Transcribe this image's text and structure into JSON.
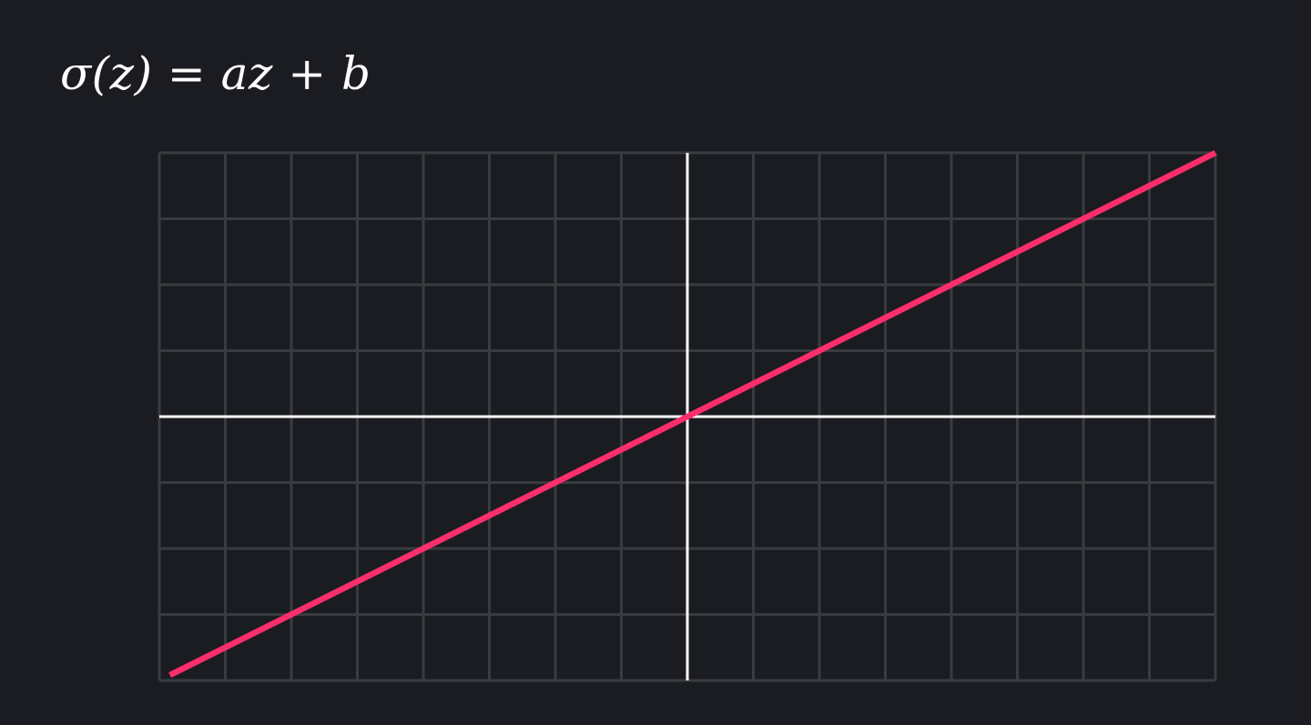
{
  "formula": {
    "text": "σ(z) = az + b"
  },
  "chart_data": {
    "type": "line",
    "x_range": [
      -8,
      8
    ],
    "y_range": [
      -4,
      4
    ],
    "grid": true,
    "grid_step": 1,
    "series": [
      {
        "x": [
          -7.84,
          8
        ],
        "y": [
          -3.92,
          4
        ],
        "color": "#ff2e6a"
      }
    ],
    "colors": {
      "background": "#1b1c21",
      "grid": "#3a3b41",
      "axes": "#ffffff",
      "line": "#ff2e6a"
    }
  }
}
